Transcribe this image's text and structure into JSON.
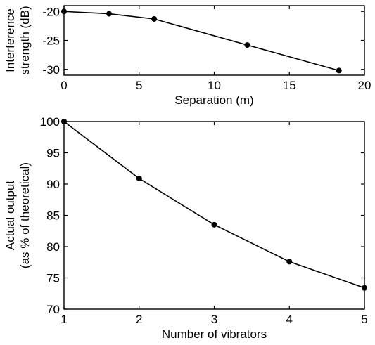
{
  "chart_data": [
    {
      "type": "line",
      "x": [
        0,
        3,
        6,
        12.2,
        18.3
      ],
      "series": [
        {
          "values": [
            -20,
            -20.4,
            -21.3,
            -25.8,
            -30.2
          ]
        }
      ],
      "xlabel": "Separation (m)",
      "ylabel": [
        "Interference",
        "strength (dB)"
      ],
      "xlim": [
        0,
        20
      ],
      "ylim": [
        -31,
        -19
      ],
      "xticks": [
        0,
        5,
        10,
        15,
        20
      ],
      "yticks": [
        -20,
        -25,
        -30
      ],
      "grid": false
    },
    {
      "type": "line",
      "x": [
        1,
        2,
        3,
        4,
        5
      ],
      "series": [
        {
          "values": [
            100,
            90.9,
            83.5,
            77.6,
            73.4
          ]
        }
      ],
      "xlabel": "Number of vibrators",
      "ylabel": [
        "Actual output",
        "(as % of theoretical)"
      ],
      "xlim": [
        1,
        5
      ],
      "ylim": [
        70,
        100
      ],
      "xticks": [
        1,
        2,
        3,
        4,
        5
      ],
      "yticks": [
        70,
        75,
        80,
        85,
        90,
        95,
        100
      ],
      "grid": false
    }
  ]
}
